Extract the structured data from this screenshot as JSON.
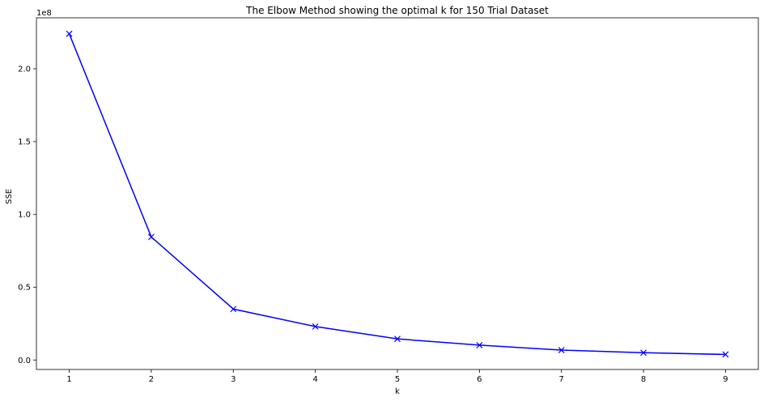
{
  "chart_data": {
    "type": "line",
    "title": "The Elbow Method showing the optimal k for 150 Trial Dataset",
    "xlabel": "k",
    "ylabel": "SSE",
    "y_scale_label": "1e8",
    "x": [
      1,
      2,
      3,
      4,
      5,
      6,
      7,
      8,
      9
    ],
    "series": [
      {
        "values": [
          224000000,
          84500000,
          35000000,
          23000000,
          14500000,
          10200000,
          6800000,
          5000000,
          3800000
        ],
        "color": "#0000ff",
        "marker": "x"
      }
    ],
    "x_ticks": [
      "1",
      "2",
      "3",
      "4",
      "5",
      "6",
      "7",
      "8",
      "9"
    ],
    "y_ticks": [
      "0.0",
      "0.5",
      "1.0",
      "1.5",
      "2.0"
    ],
    "y_tick_values": [
      0,
      50000000,
      100000000,
      150000000,
      200000000
    ],
    "xlim": [
      0.6,
      9.4
    ],
    "ylim": [
      -6500000,
      235000000
    ],
    "grid": false,
    "legend": "none"
  }
}
